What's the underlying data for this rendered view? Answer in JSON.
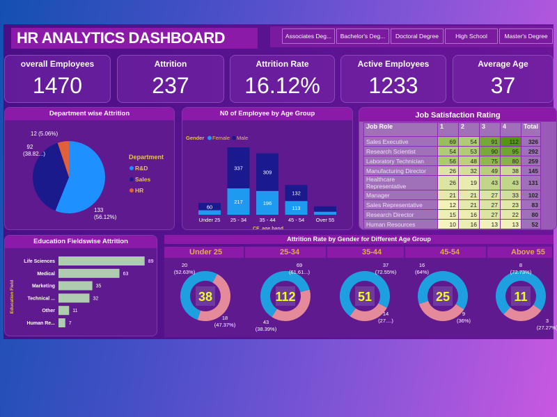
{
  "header": {
    "title": "HR ANALYTICS DASHBOARD",
    "education_slicer": [
      "Associates Deg...",
      "Bachelor's Deg...",
      "Doctoral Degree",
      "High School",
      "Master's Degree"
    ]
  },
  "kpis": [
    {
      "label": "overall Employees",
      "value": "1470"
    },
    {
      "label": "Attrition",
      "value": "237"
    },
    {
      "label": "Attrition Rate",
      "value": "16.12%"
    },
    {
      "label": "Active Employees",
      "value": "1233"
    },
    {
      "label": "Average Age",
      "value": "37"
    }
  ],
  "colors": {
    "female": "#1e9bf0",
    "male": "#1a1a8e",
    "rnd": "#1e90ff",
    "sales": "#1a1a8c",
    "hr": "#e0603a",
    "donut_female": "#1ea0e0",
    "donut_male": "#e48a9a",
    "bar": "#b0ccb0",
    "accent": "#e8c060",
    "center": "#f0ff20"
  },
  "dept_panel": {
    "title": "Department wise Attrition",
    "legend_title": "Department",
    "labels": {
      "rnd": [
        "133",
        "(56.12%)"
      ],
      "sales": [
        "92",
        "(38.82...)"
      ],
      "hr": "12 (5.06%)"
    }
  },
  "age_panel": {
    "title": "N0 of Employee by Age Group",
    "legend_title": "Gender",
    "legend": [
      "Female",
      "Male"
    ],
    "xlabel": "CF_age band"
  },
  "job_panel": {
    "title": "Job Satisfaction Rating",
    "columns": [
      "Job Role",
      "1",
      "2",
      "3",
      "4",
      "Total"
    ],
    "rows": [
      [
        "Sales Executive",
        69,
        54,
        91,
        112,
        326
      ],
      [
        "Research Scientist",
        54,
        53,
        90,
        95,
        292
      ],
      [
        "Laboratory Technician",
        56,
        48,
        75,
        80,
        259
      ],
      [
        "Manufacturing Director",
        26,
        32,
        49,
        38,
        145
      ],
      [
        "Healthcare Representative",
        26,
        19,
        43,
        43,
        131
      ],
      [
        "Manager",
        21,
        21,
        27,
        33,
        102
      ],
      [
        "Sales Representative",
        12,
        21,
        27,
        23,
        83
      ],
      [
        "Research Director",
        15,
        16,
        27,
        22,
        80
      ],
      [
        "Human Resources",
        10,
        16,
        13,
        13,
        52
      ]
    ]
  },
  "edu_panel": {
    "title": "Education Fieldswise Attrition",
    "ylabel": "Education Field"
  },
  "gender_panel": {
    "title": "Attrition Rate by Gender for Different Age Group",
    "groups": [
      {
        "label": "Under 25",
        "total": "38",
        "female": 20,
        "female_label": [
          "20",
          "(52.63%)"
        ],
        "male": 18,
        "male_label": [
          "18",
          "(47.37%)"
        ]
      },
      {
        "label": "25-34",
        "total": "112",
        "female": 69,
        "female_label": [
          "69",
          "(61.61...)"
        ],
        "male": 43,
        "male_label": [
          "43",
          "(38.39%)"
        ]
      },
      {
        "label": "35-44",
        "total": "51",
        "female": 37,
        "female_label": [
          "37",
          "(72.55%)"
        ],
        "male": 14,
        "male_label": [
          "14",
          "(27....)"
        ]
      },
      {
        "label": "45-54",
        "total": "25",
        "female": 16,
        "female_label": [
          "16",
          "(64%)"
        ],
        "male": 9,
        "male_label": [
          "9",
          "(36%)"
        ]
      },
      {
        "label": "Above 55",
        "total": "11",
        "female": 8,
        "female_label": [
          "8",
          "(72.73%)"
        ],
        "male": 3,
        "male_label": [
          "3",
          "(27.27%)"
        ]
      }
    ]
  },
  "chart_data": [
    {
      "type": "pie",
      "title": "Department wise Attrition",
      "categories": [
        "R&D",
        "Sales",
        "HR"
      ],
      "values": [
        133,
        92,
        12
      ],
      "percent": [
        56.12,
        38.82,
        5.06
      ],
      "legend": "right"
    },
    {
      "type": "bar",
      "stacked": true,
      "title": "N0 of Employee by Age Group",
      "xlabel": "CF_age band",
      "categories": [
        "Under 25",
        "25 - 34",
        "35 - 44",
        "45 - 54",
        "Over 55"
      ],
      "series": [
        {
          "name": "Female",
          "values": [
            37,
            217,
            196,
            113,
            25
          ]
        },
        {
          "name": "Male",
          "values": [
            60,
            337,
            309,
            132,
            44
          ]
        }
      ],
      "legend": "top-left"
    },
    {
      "type": "bar",
      "orientation": "horizontal",
      "title": "Education Fieldswise Attrition",
      "ylabel": "Education Field",
      "categories": [
        "Life Sciences",
        "Medical",
        "Marketing",
        "Technical ...",
        "Other",
        "Human Re..."
      ],
      "values": [
        89,
        63,
        35,
        32,
        11,
        7
      ]
    }
  ]
}
